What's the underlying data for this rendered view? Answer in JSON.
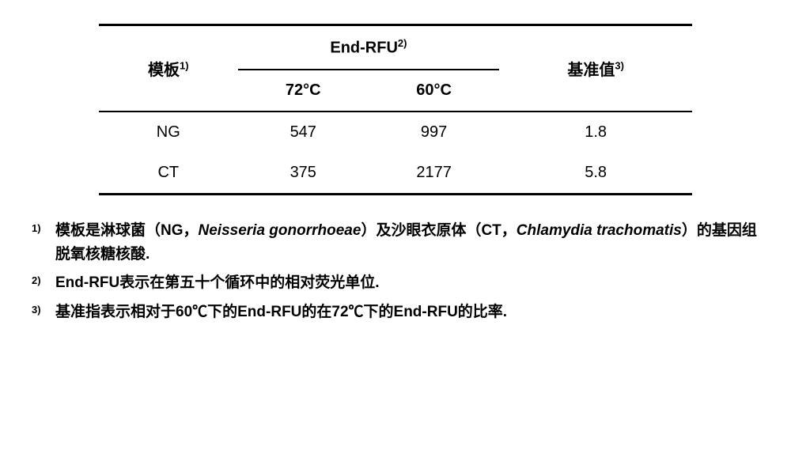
{
  "table": {
    "col_template": {
      "label": "模板",
      "sup": "1)"
    },
    "col_endrfu": {
      "label": "End-RFU",
      "sup": "2)"
    },
    "col_baseline": {
      "label": "基准值",
      "sup": "3)"
    },
    "sub_72": "72°C",
    "sub_60": "60°C",
    "rows": [
      {
        "name": "NG",
        "v72": "547",
        "v60": "997",
        "base": "1.8"
      },
      {
        "name": "CT",
        "v72": "375",
        "v60": "2177",
        "base": "5.8"
      }
    ],
    "border_color": "#000000",
    "background_color": "#ffffff",
    "header_fontsize": 20,
    "cell_fontsize": 20
  },
  "footnotes": {
    "items": [
      {
        "num": "1)",
        "pre": "模板是淋球菌（NG，",
        "it1": "Neisseria gonorrhoeae",
        "mid": "）及沙眼衣原体（CT，",
        "it2": "Chlamydia trachomatis",
        "post": "）的基因组脱氧核糖核酸."
      },
      {
        "num": "2)",
        "text": "End-RFU表示在第五十个循环中的相对荧光单位."
      },
      {
        "num": "3)",
        "text": "基准指表示相对于60℃下的End-RFU的在72℃下的End-RFU的比率."
      }
    ],
    "num_fontsize": 13,
    "text_fontsize": 19
  }
}
